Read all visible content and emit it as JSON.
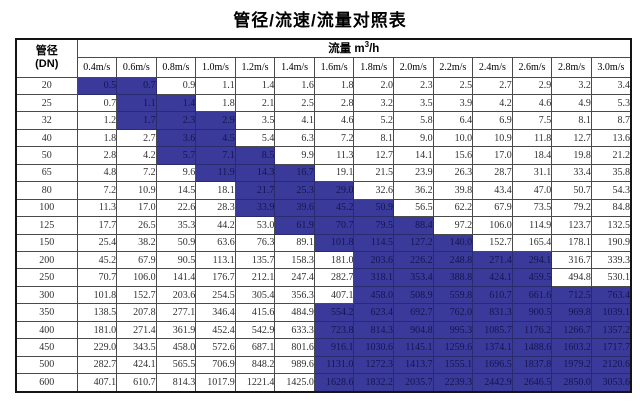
{
  "title": "管径/流速/流量对照表",
  "colors": {
    "highlight_bg": "#3A3A9B",
    "highlight_text": "#15154F",
    "grid_line": "#4a4a4a",
    "outer_border": "#141414"
  },
  "table": {
    "corner_header": {
      "line1": "管径",
      "line2": "(DN)"
    },
    "flow_header": {
      "label": "流量",
      "unit_prefix": "m",
      "unit_sup": "3",
      "unit_suffix": "/h"
    },
    "velocity_headers": [
      "0.4m/s",
      "0.6m/s",
      "0.8m/s",
      "1.0m/s",
      "1.2m/s",
      "1.4m/s",
      "1.6m/s",
      "1.8m/s",
      "2.0m/s",
      "2.2m/s",
      "2.4m/s",
      "2.6m/s",
      "2.8m/s",
      "3.0m/s"
    ],
    "rows": [
      {
        "dn": "20",
        "values": [
          "0.5",
          "0.7",
          "0.9",
          "1.1",
          "1.4",
          "1.6",
          "1.8",
          "2.0",
          "2.3",
          "2.5",
          "2.7",
          "2.9",
          "3.2",
          "3.4"
        ],
        "highlight": [
          0,
          1
        ]
      },
      {
        "dn": "25",
        "values": [
          "0.7",
          "1.1",
          "1.4",
          "1.8",
          "2.1",
          "2.5",
          "2.8",
          "3.2",
          "3.5",
          "3.9",
          "4.2",
          "4.6",
          "4.9",
          "5.3"
        ],
        "highlight": [
          1,
          2
        ]
      },
      {
        "dn": "32",
        "values": [
          "1.2",
          "1.7",
          "2.3",
          "2.9",
          "3.5",
          "4.1",
          "4.6",
          "5.2",
          "5.8",
          "6.4",
          "6.9",
          "7.5",
          "8.1",
          "8.7"
        ],
        "highlight": [
          1,
          2,
          3
        ]
      },
      {
        "dn": "40",
        "values": [
          "1.8",
          "2.7",
          "3.6",
          "4.5",
          "5.4",
          "6.3",
          "7.2",
          "8.1",
          "9.0",
          "10.0",
          "10.9",
          "11.8",
          "12.7",
          "13.6"
        ],
        "highlight": [
          2,
          3
        ]
      },
      {
        "dn": "50",
        "values": [
          "2.8",
          "4.2",
          "5.7",
          "7.1",
          "8.5",
          "9.9",
          "11.3",
          "12.7",
          "14.1",
          "15.6",
          "17.0",
          "18.4",
          "19.8",
          "21.2"
        ],
        "highlight": [
          2,
          3,
          4
        ]
      },
      {
        "dn": "65",
        "values": [
          "4.8",
          "7.2",
          "9.6",
          "11.9",
          "14.3",
          "16.7",
          "19.1",
          "21.5",
          "23.9",
          "26.3",
          "28.7",
          "31.1",
          "33.4",
          "35.8"
        ],
        "highlight": [
          3,
          4,
          5
        ]
      },
      {
        "dn": "80",
        "values": [
          "7.2",
          "10.9",
          "14.5",
          "18.1",
          "21.7",
          "25.3",
          "29.0",
          "32.6",
          "36.2",
          "39.8",
          "43.4",
          "47.0",
          "50.7",
          "54.3"
        ],
        "highlight": [
          4,
          5,
          6
        ]
      },
      {
        "dn": "100",
        "values": [
          "11.3",
          "17.0",
          "22.6",
          "28.3",
          "33.9",
          "39.6",
          "45.2",
          "50.9",
          "56.5",
          "62.2",
          "67.9",
          "73.5",
          "79.2",
          "84.8"
        ],
        "highlight": [
          4,
          5,
          6,
          7
        ]
      },
      {
        "dn": "125",
        "values": [
          "17.7",
          "26.5",
          "35.3",
          "44.2",
          "53.0",
          "61.9",
          "70.7",
          "79.5",
          "88.4",
          "97.2",
          "106.0",
          "114.9",
          "123.7",
          "132.5"
        ],
        "highlight": [
          5,
          6,
          7,
          8
        ]
      },
      {
        "dn": "150",
        "values": [
          "25.4",
          "38.2",
          "50.9",
          "63.6",
          "76.3",
          "89.1",
          "101.8",
          "114.5",
          "127.2",
          "140.0",
          "152.7",
          "165.4",
          "178.1",
          "190.9"
        ],
        "highlight": [
          6,
          7,
          8,
          9
        ]
      },
      {
        "dn": "200",
        "values": [
          "45.2",
          "67.9",
          "90.5",
          "113.1",
          "135.7",
          "158.3",
          "181.0",
          "203.6",
          "226.2",
          "248.8",
          "271.4",
          "294.1",
          "316.7",
          "339.3"
        ],
        "highlight": [
          7,
          8,
          9,
          10,
          11
        ]
      },
      {
        "dn": "250",
        "values": [
          "70.7",
          "106.0",
          "141.4",
          "176.7",
          "212.1",
          "247.4",
          "282.7",
          "318.1",
          "353.4",
          "388.8",
          "424.1",
          "459.5",
          "494.8",
          "530.1"
        ],
        "highlight": [
          7,
          8,
          9,
          10,
          11
        ]
      },
      {
        "dn": "300",
        "values": [
          "101.8",
          "152.7",
          "203.6",
          "254.5",
          "305.4",
          "356.3",
          "407.1",
          "458.0",
          "508.9",
          "559.8",
          "610.7",
          "661.6",
          "712.5",
          "763.4"
        ],
        "highlight": [
          7,
          8,
          9,
          10,
          11,
          12,
          13
        ]
      },
      {
        "dn": "350",
        "values": [
          "138.5",
          "207.8",
          "277.1",
          "346.4",
          "415.6",
          "484.9",
          "554.2",
          "623.4",
          "692.7",
          "762.0",
          "831.3",
          "900.5",
          "969.8",
          "1039.1"
        ],
        "highlight": [
          6,
          7,
          8,
          9,
          10,
          11,
          12,
          13
        ]
      },
      {
        "dn": "400",
        "values": [
          "181.0",
          "271.4",
          "361.9",
          "452.4",
          "542.9",
          "633.3",
          "723.8",
          "814.3",
          "904.8",
          "995.3",
          "1085.7",
          "1176.2",
          "1266.7",
          "1357.2"
        ],
        "highlight": [
          6,
          7,
          8,
          9,
          10,
          11,
          12,
          13
        ]
      },
      {
        "dn": "450",
        "values": [
          "229.0",
          "343.5",
          "458.0",
          "572.6",
          "687.1",
          "801.6",
          "916.1",
          "1030.6",
          "1145.1",
          "1259.6",
          "1374.1",
          "1488.6",
          "1603.2",
          "1717.7"
        ],
        "highlight": [
          6,
          7,
          8,
          9,
          10,
          11,
          12,
          13
        ]
      },
      {
        "dn": "500",
        "values": [
          "282.7",
          "424.1",
          "565.5",
          "706.9",
          "848.2",
          "989.6",
          "1131.0",
          "1272.3",
          "1413.7",
          "1555.1",
          "1696.5",
          "1837.8",
          "1979.2",
          "2120.6"
        ],
        "highlight": [
          6,
          7,
          8,
          9,
          10,
          11,
          12,
          13
        ]
      },
      {
        "dn": "600",
        "values": [
          "407.1",
          "610.7",
          "814.3",
          "1017.9",
          "1221.4",
          "1425.0",
          "1628.6",
          "1832.2",
          "2035.7",
          "2239.3",
          "2442.9",
          "2646.5",
          "2850.0",
          "3053.6"
        ],
        "highlight": [
          6,
          7,
          8,
          9,
          10,
          11,
          12,
          13
        ]
      }
    ]
  }
}
